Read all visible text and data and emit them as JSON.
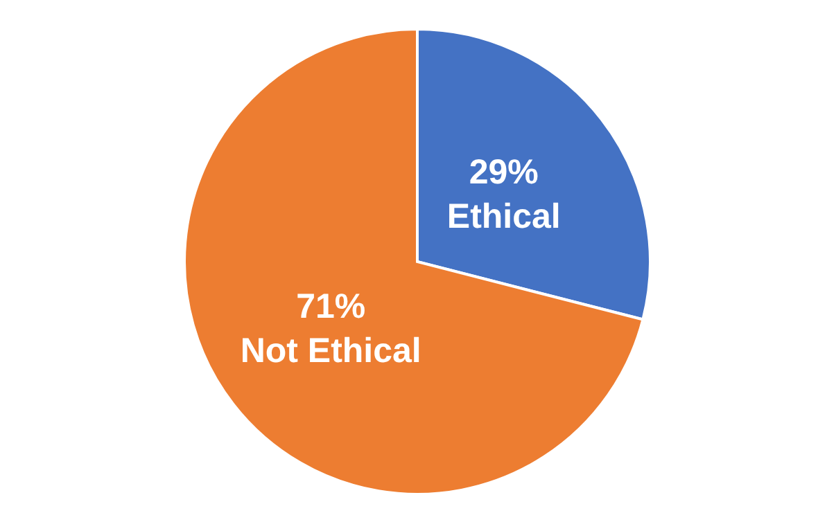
{
  "chart_data": {
    "type": "pie",
    "categories": [
      "Ethical",
      "Not Ethical"
    ],
    "values": [
      29,
      71
    ],
    "colors": [
      "#4472c4",
      "#ed7d31"
    ],
    "value_labels": [
      "29%",
      "71%"
    ],
    "legend": false
  }
}
